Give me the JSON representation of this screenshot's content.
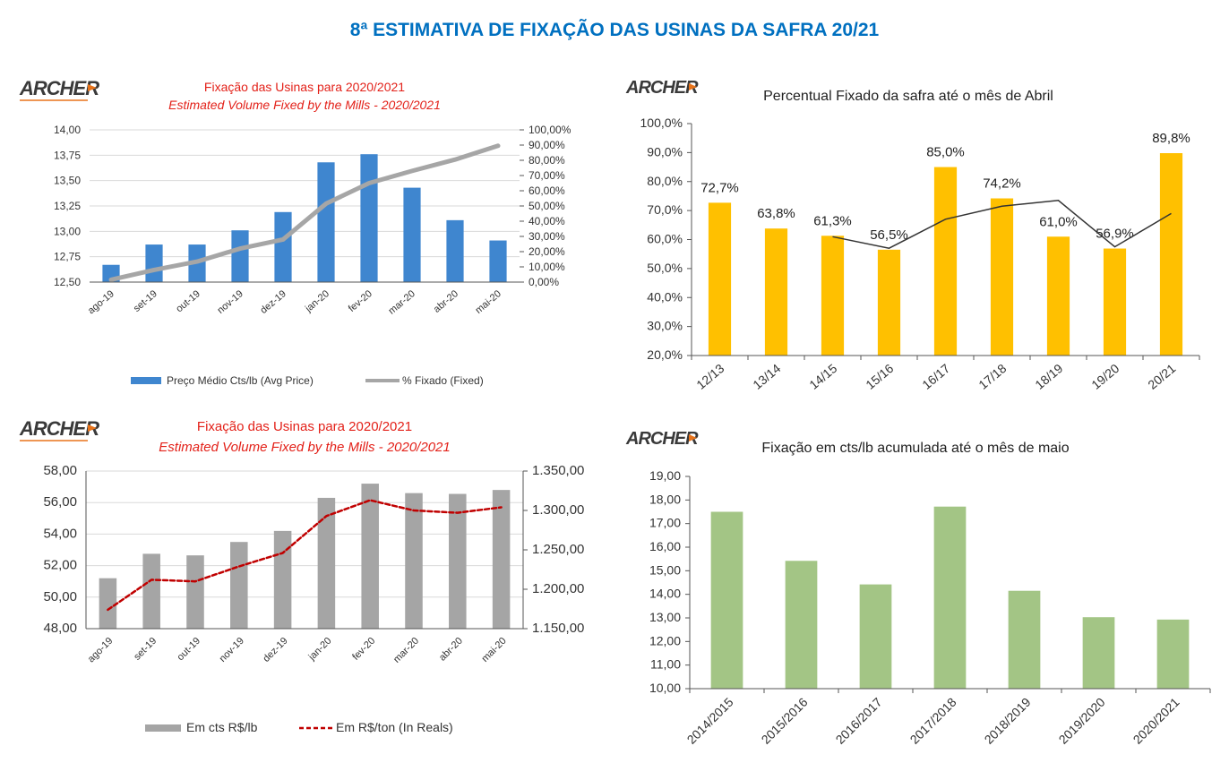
{
  "page_title": "8ª ESTIMATIVA DE FIXAÇÃO DAS USINAS DA SAFRA 20/21",
  "logo_text": "ARCHER",
  "colors": {
    "title_blue": "#0070c0",
    "red_title": "#e32119",
    "blue_bar": "#3f86cf",
    "gray_line": "#a6a6a6",
    "yellow_bar": "#ffc000",
    "gray_bar": "#a5a5a5",
    "dark_red_dash": "#c00000",
    "green_bar": "#a3c585",
    "line_black": "#333333",
    "grid": "#d9d9d9"
  },
  "chart_data": [
    {
      "type": "bar",
      "title": "Fixação das Usinas para 2020/2021",
      "subtitle": "Estimated Volume Fixed by the Mills - 2020/2021",
      "categories": [
        "ago-19",
        "set-19",
        "out-19",
        "nov-19",
        "dez-19",
        "jan-20",
        "fev-20",
        "mar-20",
        "abr-20",
        "mai-20"
      ],
      "series": [
        {
          "name": "Preço Médio Cts/lb (Avg Price)",
          "type": "bar",
          "axis": "left",
          "values": [
            12.67,
            12.87,
            12.87,
            13.01,
            13.19,
            13.68,
            13.76,
            13.43,
            13.11,
            12.91
          ]
        },
        {
          "name": "% Fixado (Fixed)",
          "type": "line",
          "axis": "right",
          "values": [
            1.5,
            8.0,
            13.5,
            22.0,
            28.0,
            51.5,
            65.0,
            73.0,
            80.5,
            89.5
          ]
        }
      ],
      "ylim": [
        12.5,
        14.0
      ],
      "yticks": [
        "12,50",
        "12,75",
        "13,00",
        "13,25",
        "13,50",
        "13,75",
        "14,00"
      ],
      "y2lim": [
        0,
        100
      ],
      "y2ticks": [
        "0,00%",
        "10,00%",
        "20,00%",
        "30,00%",
        "40,00%",
        "50,00%",
        "60,00%",
        "70,00%",
        "80,00%",
        "90,00%",
        "100,00%"
      ],
      "legend": "bottom",
      "grid": true
    },
    {
      "type": "bar",
      "title": "Percentual Fixado da safra até o mês de Abril",
      "categories": [
        "12/13",
        "13/14",
        "14/15",
        "15/16",
        "16/17",
        "17/18",
        "18/19",
        "19/20",
        "20/21"
      ],
      "values": [
        72.7,
        63.8,
        61.3,
        56.5,
        85.0,
        74.2,
        61.0,
        56.9,
        89.8
      ],
      "data_labels": [
        "72,7%",
        "63,8%",
        "61,3%",
        "56,5%",
        "85,0%",
        "74,2%",
        "61,0%",
        "56,9%",
        "89,8%"
      ],
      "trend_line": [
        null,
        null,
        61.0,
        57.0,
        67.0,
        71.5,
        73.5,
        57.5,
        69.0
      ],
      "ylim": [
        20,
        100
      ],
      "yticks": [
        "20,0%",
        "30,0%",
        "40,0%",
        "50,0%",
        "60,0%",
        "70,0%",
        "80,0%",
        "90,0%",
        "100,0%"
      ],
      "grid": false
    },
    {
      "type": "bar",
      "title": "Fixação das Usinas para 2020/2021",
      "subtitle": "Estimated Volume Fixed by the Mills - 2020/2021",
      "categories": [
        "ago-19",
        "set-19",
        "out-19",
        "nov-19",
        "dez-19",
        "jan-20",
        "fev-20",
        "mar-20",
        "abr-20",
        "mai-20"
      ],
      "series": [
        {
          "name": "Em cts R$/lb",
          "type": "bar",
          "axis": "left",
          "values": [
            51.2,
            52.75,
            52.65,
            53.5,
            54.2,
            56.3,
            57.2,
            56.6,
            56.55,
            56.8
          ]
        },
        {
          "name": "Em R$/ton (In Reals)",
          "type": "line",
          "axis": "right",
          "values": [
            1174,
            1212,
            1210,
            1229,
            1246,
            1293,
            1313,
            1300,
            1297,
            1304
          ]
        }
      ],
      "ylim": [
        48,
        58
      ],
      "yticks": [
        "48,00",
        "50,00",
        "52,00",
        "54,00",
        "56,00",
        "58,00"
      ],
      "y2lim": [
        1150,
        1350
      ],
      "y2ticks": [
        "1.150,00",
        "1.200,00",
        "1.250,00",
        "1.300,00",
        "1.350,00"
      ],
      "legend": "bottom",
      "grid": true
    },
    {
      "type": "bar",
      "title": "Fixação em cts/lb acumulada até o mês de maio",
      "categories": [
        "2014/2015",
        "2015/2016",
        "2016/2017",
        "2017/2018",
        "2018/2019",
        "2019/2020",
        "2020/2021"
      ],
      "values": [
        17.5,
        15.42,
        14.42,
        17.72,
        14.15,
        13.03,
        12.93
      ],
      "ylim": [
        10,
        19
      ],
      "yticks": [
        "10,00",
        "11,00",
        "12,00",
        "13,00",
        "14,00",
        "15,00",
        "16,00",
        "17,00",
        "18,00",
        "19,00"
      ],
      "grid": false
    }
  ]
}
